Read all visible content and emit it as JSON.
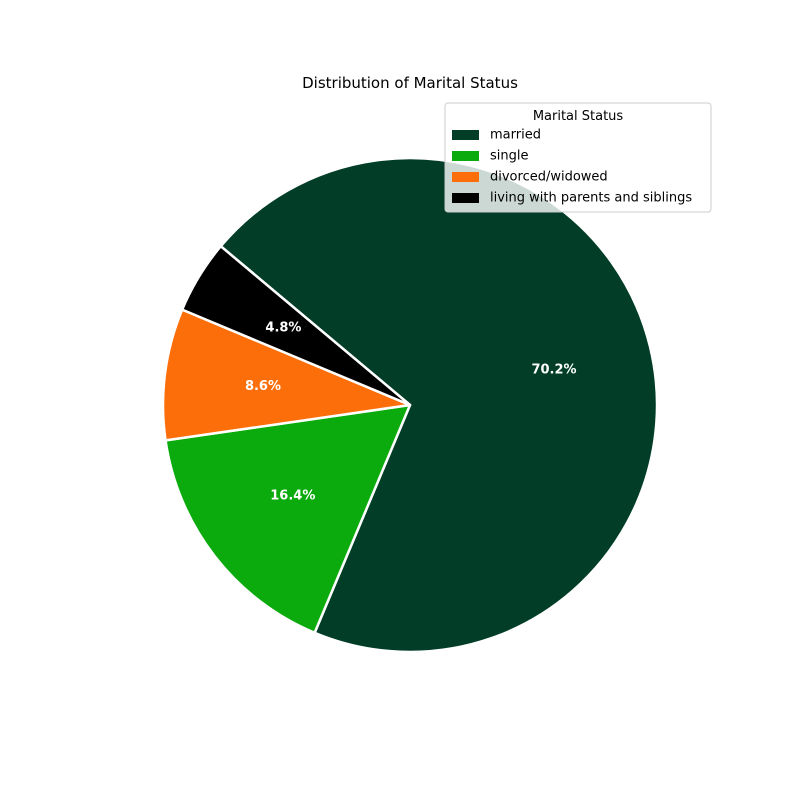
{
  "chart_data": {
    "type": "pie",
    "title": "Distribution of Marital Status",
    "legend": {
      "title": "Marital Status",
      "placement": "top-right"
    },
    "slices": [
      {
        "label": "married",
        "value": 70.2,
        "pct_label": "70.2%",
        "color": "#013d27"
      },
      {
        "label": "single",
        "value": 16.4,
        "pct_label": "16.4%",
        "color": "#0bab0d"
      },
      {
        "label": "divorced/widowed",
        "value": 8.6,
        "pct_label": "8.6%",
        "color": "#fc6e09"
      },
      {
        "label": "living with parents and siblings",
        "value": 4.8,
        "pct_label": "4.8%",
        "color": "#000000"
      }
    ],
    "start_angle_deg": 140,
    "direction": "clockwise",
    "edge_color": "#ffffff"
  }
}
